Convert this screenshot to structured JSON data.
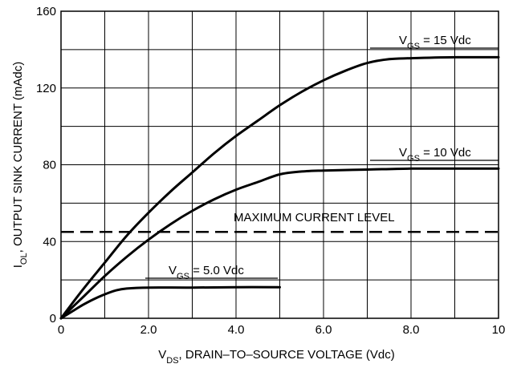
{
  "chart_data": {
    "type": "line",
    "xlabel": {
      "main": "V",
      "sub": "DS",
      "rest": ", DRAIN–TO–SOURCE VOLTAGE (Vdc)"
    },
    "ylabel": {
      "main": "I",
      "sub": "OL",
      "rest": ", OUTPUT SINK CURRENT (mAdc)"
    },
    "xlim": [
      0,
      10
    ],
    "ylim": [
      0,
      160
    ],
    "x_ticks": [
      {
        "value": 0,
        "label": "0"
      },
      {
        "value": 2,
        "label": "2.0"
      },
      {
        "value": 4,
        "label": "4.0"
      },
      {
        "value": 6,
        "label": "6.0"
      },
      {
        "value": 8,
        "label": "8.0"
      },
      {
        "value": 10,
        "label": "10"
      }
    ],
    "y_ticks": [
      {
        "value": 0,
        "label": "0"
      },
      {
        "value": 40,
        "label": "40"
      },
      {
        "value": 80,
        "label": "80"
      },
      {
        "value": 120,
        "label": "120"
      },
      {
        "value": 160,
        "label": "160"
      }
    ],
    "grid_x_step": 1,
    "grid_y_step": 20,
    "grid": true,
    "series": [
      {
        "name": {
          "main": "V",
          "sub": "GS",
          "rest": " = 15 Vdc"
        },
        "x": [
          0,
          0.5,
          1,
          1.5,
          2,
          2.5,
          3,
          3.5,
          4,
          4.5,
          5,
          5.5,
          6,
          6.5,
          7,
          7.5,
          8,
          9,
          10
        ],
        "y": [
          0,
          15,
          29,
          43,
          55,
          66,
          76,
          86,
          95,
          103,
          111,
          118,
          124,
          129,
          133,
          135,
          135.5,
          136,
          136
        ]
      },
      {
        "name": {
          "main": "V",
          "sub": "GS",
          "rest": " = 10 Vdc"
        },
        "x": [
          0,
          0.5,
          1,
          1.5,
          2,
          2.5,
          3,
          3.5,
          4,
          4.5,
          5,
          5.5,
          6,
          7,
          8,
          9,
          10
        ],
        "y": [
          0,
          11,
          22,
          32,
          41,
          49,
          56,
          62,
          67,
          71,
          75,
          76.5,
          77,
          77.5,
          78,
          78,
          78
        ]
      },
      {
        "name": {
          "main": "V",
          "sub": "GS",
          "rest": " = 5.0 Vdc"
        },
        "x": [
          0,
          0.25,
          0.5,
          0.75,
          1,
          1.25,
          1.5,
          2,
          3,
          4,
          5
        ],
        "y": [
          0,
          3.5,
          7,
          10,
          12.5,
          14.5,
          15.5,
          16,
          16,
          16.2,
          16.2
        ]
      }
    ],
    "annotations": [
      {
        "text": "MAXIMUM CURRENT LEVEL",
        "y": 45,
        "style": "dashed-line"
      }
    ]
  }
}
